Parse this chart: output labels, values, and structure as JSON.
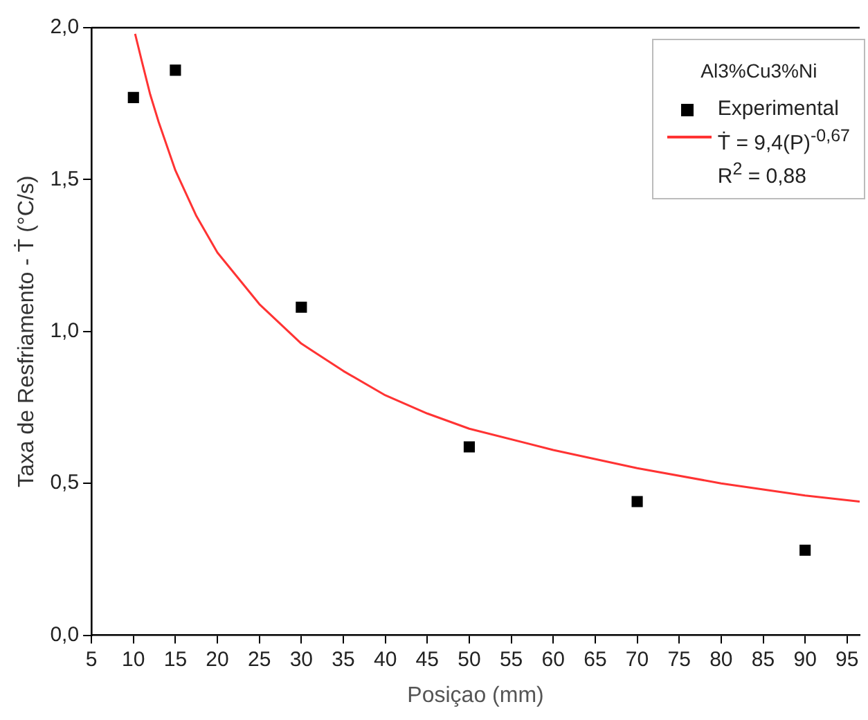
{
  "chart_data": {
    "type": "scatter",
    "xlabel": "Posiçao (mm)",
    "ylabel": "Taxa de Resfriamento - Ṫ (°C/s)",
    "legend_title": "Al3%Cu3%Ni",
    "legend": "top right",
    "grid": false,
    "xlim": [
      5,
      96.5
    ],
    "xticks": [
      5,
      10,
      15,
      20,
      25,
      30,
      35,
      40,
      45,
      50,
      55,
      60,
      65,
      70,
      75,
      80,
      85,
      90,
      95
    ],
    "ylim": [
      0,
      2.0
    ],
    "yticks": [
      {
        "value": 0,
        "label": "0,0"
      },
      {
        "value": 0.5,
        "label": "0,5"
      },
      {
        "value": 1.0,
        "label": "1,0"
      },
      {
        "value": 1.5,
        "label": "1,5"
      },
      {
        "value": 2.0,
        "label": "2,0"
      }
    ],
    "series": [
      {
        "name": "Experimental",
        "marker": "square",
        "color": "#000000",
        "x": [
          10,
          15,
          30,
          50,
          70,
          90
        ],
        "values": [
          1.77,
          1.86,
          1.08,
          0.62,
          0.44,
          0.28
        ]
      },
      {
        "name": "Ṫ = 9,4(P)$^{-0,67}$\nR$^{2}$ = 0,88",
        "type": "line",
        "marker": "none",
        "line_style": "solid",
        "color": "#ff3333",
        "x": [
          10.2,
          11,
          12,
          13,
          15,
          17.5,
          20,
          25,
          30,
          35,
          40,
          45,
          50,
          60,
          70,
          80,
          90,
          96.5
        ],
        "values": [
          1.98,
          1.89,
          1.78,
          1.69,
          1.53,
          1.38,
          1.26,
          1.09,
          0.96,
          0.87,
          0.79,
          0.73,
          0.68,
          0.61,
          0.55,
          0.5,
          0.46,
          0.44
        ]
      }
    ]
  }
}
